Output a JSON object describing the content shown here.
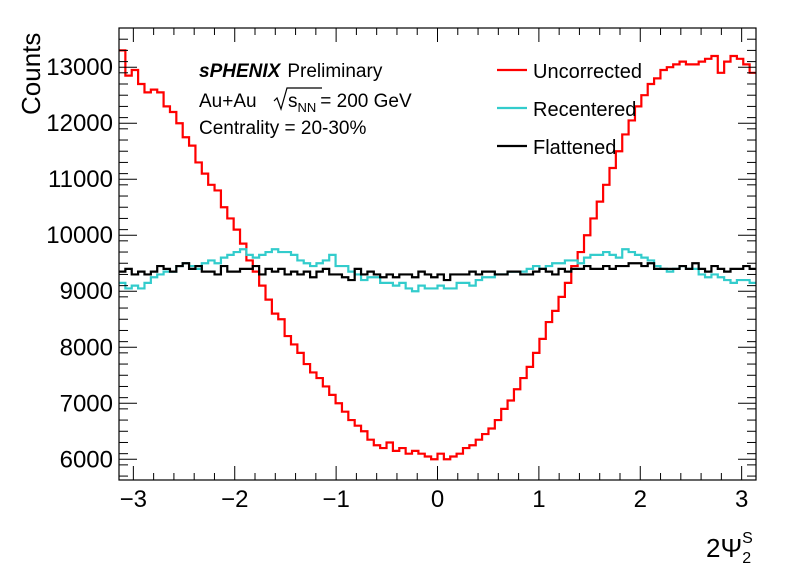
{
  "chart_data": {
    "type": "line",
    "drawstyle": "step",
    "title": "",
    "xlabel": "2Ψ",
    "xlabel_sub": "2",
    "xlabel_sup": "S",
    "ylabel": "Counts",
    "xlim": [
      -3.1416,
      3.1416
    ],
    "ylim": [
      5630,
      13700
    ],
    "x_ticks": [
      -3,
      -2,
      -1,
      0,
      1,
      2,
      3
    ],
    "x_tick_labels": [
      "−3",
      "−2",
      "−1",
      "0",
      "1",
      "2",
      "3"
    ],
    "y_ticks": [
      6000,
      7000,
      8000,
      9000,
      10000,
      11000,
      12000,
      13000
    ],
    "y_tick_labels": [
      "6000",
      "7000",
      "8000",
      "9000",
      "10000",
      "11000",
      "12000",
      "13000"
    ],
    "grid": false,
    "legend_position": "top-right",
    "annotations": {
      "experiment": "sPHENIX",
      "status": "Preliminary",
      "system": "Au+Au",
      "energy_symbol": "s",
      "energy_subscript": "NN",
      "energy_value": "= 200 GeV",
      "centrality": "Centrality = 20-30%"
    },
    "n_bins": 100,
    "series": [
      {
        "name": "Uncorrected",
        "color": "#ff0000",
        "values": [
          13300,
          12850,
          12950,
          12700,
          12550,
          12600,
          12550,
          12300,
          12200,
          12000,
          11750,
          11600,
          11300,
          11100,
          10900,
          10800,
          10500,
          10300,
          10100,
          9850,
          9550,
          9350,
          9100,
          8850,
          8600,
          8500,
          8200,
          8050,
          7900,
          7700,
          7550,
          7450,
          7300,
          7150,
          7000,
          6850,
          6700,
          6600,
          6500,
          6350,
          6250,
          6200,
          6300,
          6150,
          6200,
          6100,
          6150,
          6100,
          6050,
          6000,
          6100,
          6000,
          6050,
          6100,
          6200,
          6250,
          6350,
          6450,
          6550,
          6700,
          6900,
          7050,
          7250,
          7450,
          7650,
          7900,
          8150,
          8450,
          8650,
          8900,
          9150,
          9450,
          9700,
          10000,
          10300,
          10600,
          10900,
          11200,
          11500,
          11800,
          12050,
          12300,
          12500,
          12700,
          12800,
          12950,
          13000,
          13050,
          13100,
          13050,
          13050,
          13100,
          13150,
          13200,
          12900,
          13100,
          13200,
          13150,
          13050,
          12900
        ]
      },
      {
        "name": "Recentered",
        "color": "#33cccc",
        "values": [
          9150,
          9050,
          9100,
          9050,
          9150,
          9250,
          9300,
          9350,
          9350,
          9450,
          9500,
          9450,
          9400,
          9500,
          9550,
          9500,
          9600,
          9650,
          9700,
          9750,
          9650,
          9600,
          9650,
          9700,
          9750,
          9700,
          9700,
          9650,
          9550,
          9500,
          9450,
          9500,
          9550,
          9650,
          9450,
          9450,
          9350,
          9300,
          9200,
          9250,
          9250,
          9150,
          9150,
          9100,
          9150,
          9050,
          9000,
          9100,
          9050,
          9050,
          9100,
          9050,
          9050,
          9150,
          9150,
          9100,
          9200,
          9250,
          9250,
          9300,
          9300,
          9350,
          9350,
          9350,
          9400,
          9450,
          9400,
          9450,
          9500,
          9500,
          9550,
          9550,
          9500,
          9600,
          9650,
          9650,
          9700,
          9650,
          9600,
          9750,
          9700,
          9650,
          9600,
          9550,
          9450,
          9400,
          9350,
          9400,
          9450,
          9400,
          9400,
          9300,
          9250,
          9300,
          9250,
          9200,
          9150,
          9200,
          9200,
          9150
        ]
      },
      {
        "name": "Flattened",
        "color": "#000000",
        "values": [
          9350,
          9400,
          9300,
          9350,
          9300,
          9350,
          9450,
          9400,
          9350,
          9450,
          9500,
          9400,
          9450,
          9350,
          9350,
          9300,
          9450,
          9350,
          9350,
          9400,
          9400,
          9450,
          9300,
          9400,
          9350,
          9400,
          9300,
          9350,
          9300,
          9350,
          9250,
          9350,
          9400,
          9300,
          9300,
          9250,
          9200,
          9400,
          9300,
          9350,
          9300,
          9250,
          9300,
          9250,
          9300,
          9300,
          9250,
          9350,
          9300,
          9250,
          9300,
          9200,
          9300,
          9300,
          9300,
          9350,
          9300,
          9350,
          9350,
          9300,
          9300,
          9350,
          9350,
          9300,
          9300,
          9350,
          9400,
          9350,
          9300,
          9400,
          9350,
          9400,
          9400,
          9450,
          9400,
          9400,
          9450,
          9400,
          9450,
          9450,
          9500,
          9500,
          9450,
          9500,
          9400,
          9400,
          9400,
          9400,
          9450,
          9400,
          9500,
          9400,
          9350,
          9450,
          9400,
          9350,
          9400,
          9400,
          9450,
          9400
        ]
      }
    ]
  }
}
